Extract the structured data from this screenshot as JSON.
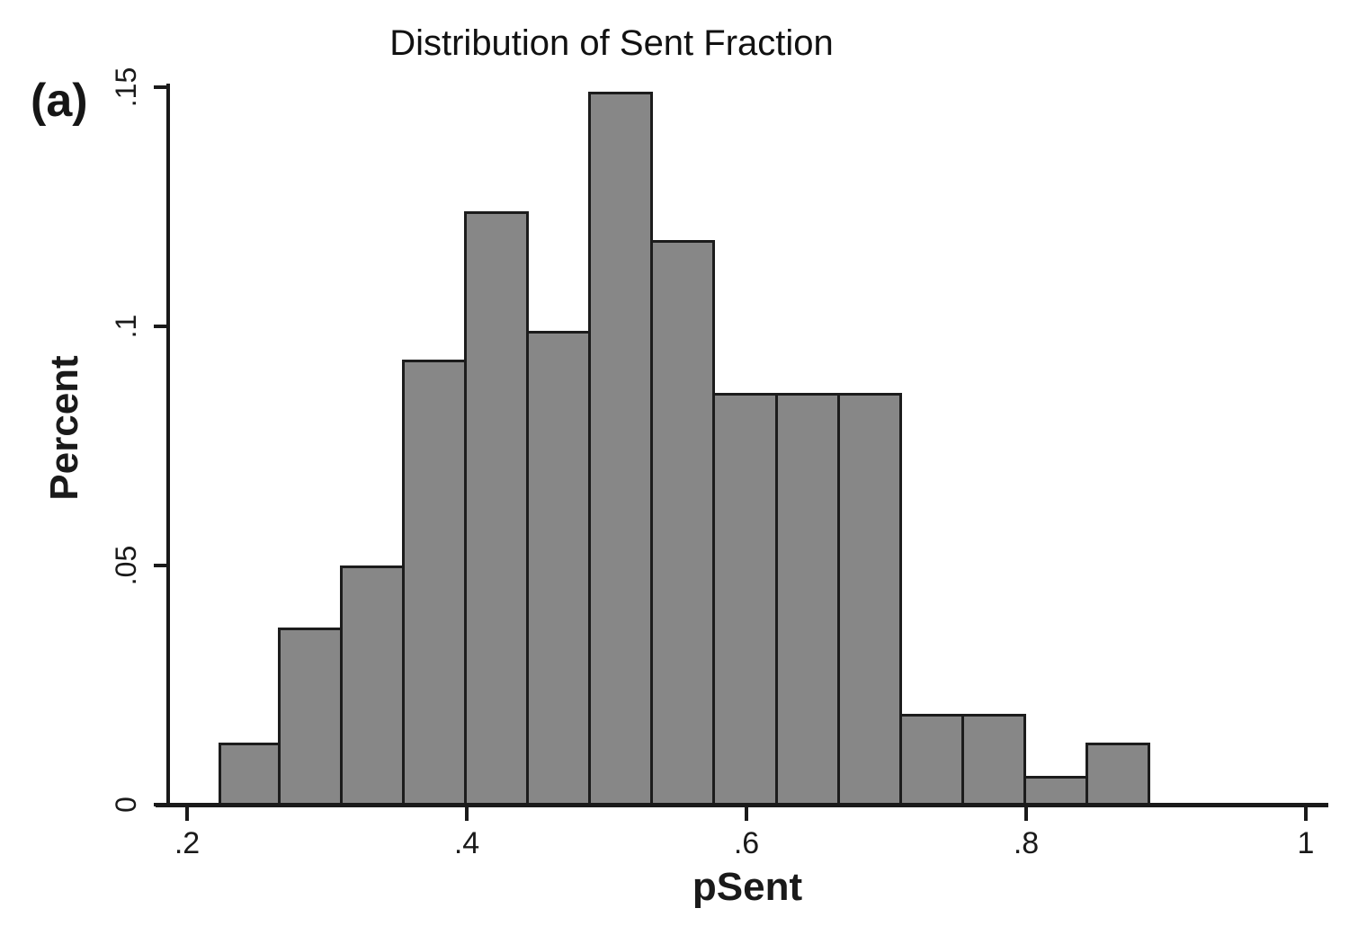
{
  "figure_label": "(a)",
  "chart_data": {
    "type": "bar",
    "chart_kind": "histogram",
    "title": "Distribution of Sent Fraction",
    "xlabel": "pSent",
    "ylabel": "Percent",
    "x_tick_labels": [
      ".2",
      ".4",
      ".6",
      ".8",
      "1"
    ],
    "x_tick_values": [
      0.2,
      0.4,
      0.6,
      0.8,
      1.0
    ],
    "y_tick_labels": [
      "0",
      ".05",
      ".1",
      ".15"
    ],
    "y_tick_values": [
      0,
      0.05,
      0.1,
      0.15
    ],
    "xlim": [
      0.2,
      1.0
    ],
    "ylim": [
      0,
      0.15
    ],
    "grid": false,
    "legend": "none",
    "bin_width": 0.0444,
    "bins_start": [
      0.2222,
      0.2667,
      0.3111,
      0.3556,
      0.4,
      0.4444,
      0.4889,
      0.5333,
      0.5778,
      0.6222,
      0.6667,
      0.7111,
      0.7556,
      0.8,
      0.8444
    ],
    "bins_end_last": 0.8889,
    "values": [
      0.013,
      0.037,
      0.05,
      0.093,
      0.124,
      0.099,
      0.149,
      0.118,
      0.086,
      0.086,
      0.086,
      0.019,
      0.019,
      0.006,
      0.013
    ],
    "bar_fill": "#878787",
    "bar_border": "#1c1c1c",
    "axis_color": "#1a1a1a"
  }
}
